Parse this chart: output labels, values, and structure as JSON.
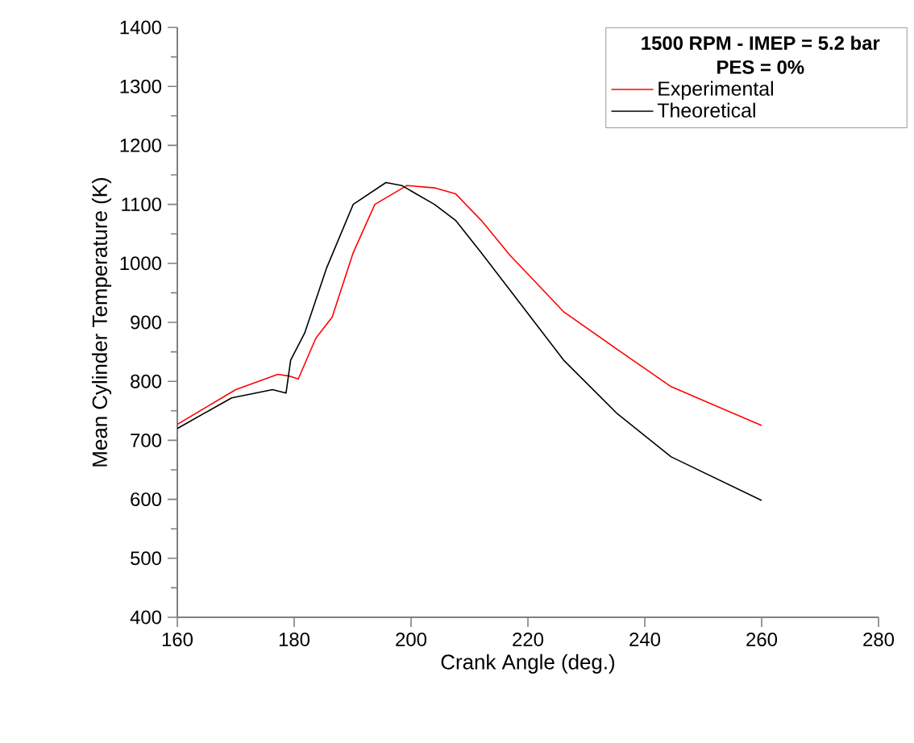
{
  "chart_data": {
    "type": "line",
    "xlabel": "Crank Angle (deg.)",
    "ylabel": "Mean Cylinder Temperature (K)",
    "legend_title": "1500 RPM - IMEP = 5.2 bar PES = 0%",
    "series": [
      {
        "name": "Experimental",
        "color": "#ff0000",
        "x": [
          160,
          170,
          177.2,
          179.1,
          180.7,
          183.7,
          186.5,
          190.1,
          193.8,
          199.3,
          204,
          207.6,
          212,
          216.9,
          226.1,
          235.3,
          244.5,
          260
        ],
        "values": [
          727,
          786,
          812,
          809,
          804,
          873,
          909,
          1018,
          1100,
          1132,
          1128,
          1118,
          1073,
          1014,
          918,
          854,
          791,
          725
        ]
      },
      {
        "name": "Theoretical",
        "color": "#000000",
        "x": [
          160,
          169.3,
          176.3,
          178.6,
          179.4,
          181.8,
          185.5,
          190.1,
          195.7,
          198.4,
          204,
          207.6,
          212,
          216.9,
          226.1,
          235.3,
          244.5,
          260
        ],
        "values": [
          720,
          772,
          786,
          780,
          836,
          882,
          991,
          1100,
          1137,
          1132,
          1100,
          1073,
          1018,
          955,
          836,
          745,
          672,
          598
        ]
      }
    ],
    "xlim": [
      160,
      280
    ],
    "ylim": [
      400,
      1400
    ],
    "xticks": [
      160,
      180,
      200,
      220,
      240,
      260,
      280
    ],
    "yticks": [
      400,
      500,
      600,
      700,
      800,
      900,
      1000,
      1100,
      1200,
      1300,
      1400
    ],
    "legend": "top right",
    "grid": false,
    "marker": "none",
    "line_style": "solid"
  }
}
